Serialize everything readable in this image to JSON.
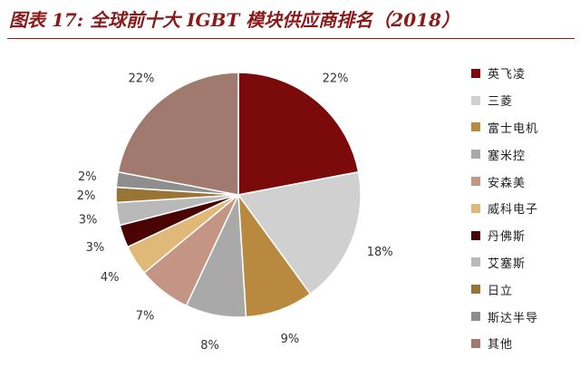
{
  "title": "图表 17:  全球前十大 IGBT 模块供应商排名（2018）",
  "chart_data": {
    "type": "pie",
    "title": "图表 17:  全球前十大 IGBT 模块供应商排名（2018）",
    "legend_position": "right",
    "slices": [
      {
        "name": "英飞凌",
        "value": 22,
        "label": "22%",
        "color": "#7b0a0a"
      },
      {
        "name": "三菱",
        "value": 18,
        "label": "18%",
        "color": "#d0d0d0"
      },
      {
        "name": "富士电机",
        "value": 9,
        "label": "9%",
        "color": "#b8893e"
      },
      {
        "name": "塞米控",
        "value": 8,
        "label": "8%",
        "color": "#a9a9a9"
      },
      {
        "name": "安森美",
        "value": 7,
        "label": "7%",
        "color": "#c49484"
      },
      {
        "name": "威科电子",
        "value": 4,
        "label": "4%",
        "color": "#e0b878"
      },
      {
        "name": "丹佛斯",
        "value": 3,
        "label": "3%",
        "color": "#4a0303"
      },
      {
        "name": "艾塞斯",
        "value": 3,
        "label": "3%",
        "color": "#b9b9b9"
      },
      {
        "name": "日立",
        "value": 2,
        "label": "2%",
        "color": "#9a7336"
      },
      {
        "name": "斯达半导",
        "value": 2,
        "label": "2%",
        "color": "#8e8e8e"
      },
      {
        "name": "其他",
        "value": 22,
        "label": "22%",
        "color": "#a07a6e"
      }
    ]
  }
}
